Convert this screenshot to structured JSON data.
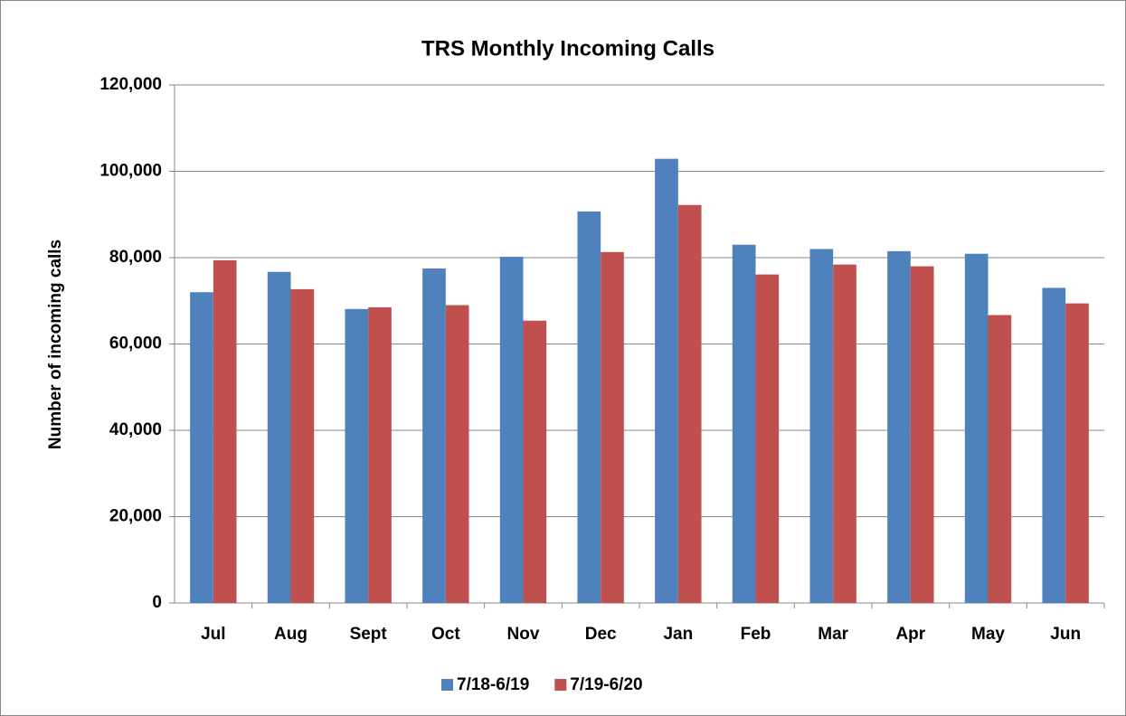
{
  "chart_data": {
    "type": "bar",
    "title": "TRS Monthly Incoming Calls",
    "y_label": "Number of incoming calls",
    "categories": [
      "Jul",
      "Aug",
      "Sept",
      "Oct",
      "Nov",
      "Dec",
      "Jan",
      "Feb",
      "Mar",
      "Apr",
      "May",
      "Jun"
    ],
    "series": [
      {
        "name": "7/18-6/19",
        "color": "#4f81bd",
        "values": [
          72000,
          76700,
          68100,
          77500,
          80200,
          90700,
          102900,
          83000,
          82000,
          81500,
          80900,
          73000
        ]
      },
      {
        "name": "7/19-6/20",
        "color": "#c0504d",
        "values": [
          79400,
          72700,
          68500,
          69000,
          65400,
          81300,
          92200,
          76100,
          78400,
          78000,
          66700,
          69400
        ]
      }
    ],
    "ylim": [
      0,
      120000
    ],
    "yticks": [
      0,
      {
        "value": 20000,
        "label": "20,000"
      },
      {
        "value": 40000,
        "label": "40,000"
      },
      {
        "value": 60000,
        "label": "60,000"
      },
      {
        "value": 80000,
        "label": "80,000"
      },
      {
        "value": 100000,
        "label": "100,000"
      },
      {
        "value": 120000,
        "label": "120,000"
      }
    ],
    "grid": true,
    "legend": "bottom"
  }
}
